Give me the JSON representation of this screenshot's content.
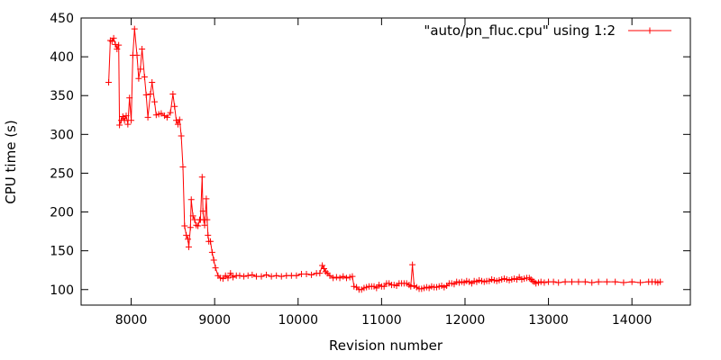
{
  "chart_data": {
    "type": "line",
    "xlabel": "Revision number",
    "ylabel": "CPU time (s)",
    "xlim": [
      7400,
      14700
    ],
    "ylim": [
      80,
      450
    ],
    "x_ticks": [
      8000,
      9000,
      10000,
      11000,
      12000,
      13000,
      14000
    ],
    "y_ticks": [
      100,
      150,
      200,
      250,
      300,
      350,
      400,
      450
    ],
    "grid": false,
    "legend_position": "top-right",
    "series": [
      {
        "name": "\"auto/pn_fluc.cpu\" using 1:2",
        "color": "#ff0000",
        "marker": "plus",
        "points": [
          [
            7730,
            367
          ],
          [
            7750,
            421
          ],
          [
            7770,
            420
          ],
          [
            7790,
            424
          ],
          [
            7810,
            416
          ],
          [
            7830,
            410
          ],
          [
            7850,
            415
          ],
          [
            7860,
            312
          ],
          [
            7880,
            318
          ],
          [
            7900,
            323
          ],
          [
            7920,
            318
          ],
          [
            7940,
            324
          ],
          [
            7960,
            313
          ],
          [
            7980,
            347
          ],
          [
            8000,
            318
          ],
          [
            8020,
            402
          ],
          [
            8040,
            436
          ],
          [
            8070,
            402
          ],
          [
            8090,
            372
          ],
          [
            8110,
            384
          ],
          [
            8130,
            410
          ],
          [
            8160,
            374
          ],
          [
            8180,
            351
          ],
          [
            8200,
            322
          ],
          [
            8230,
            352
          ],
          [
            8250,
            367
          ],
          [
            8280,
            342
          ],
          [
            8300,
            325
          ],
          [
            8330,
            326
          ],
          [
            8360,
            327
          ],
          [
            8400,
            324
          ],
          [
            8430,
            322
          ],
          [
            8470,
            328
          ],
          [
            8500,
            352
          ],
          [
            8520,
            336
          ],
          [
            8540,
            318
          ],
          [
            8560,
            313
          ],
          [
            8580,
            319
          ],
          [
            8600,
            298
          ],
          [
            8620,
            258
          ],
          [
            8640,
            182
          ],
          [
            8660,
            170
          ],
          [
            8680,
            165
          ],
          [
            8690,
            155
          ],
          [
            8710,
            180
          ],
          [
            8720,
            216
          ],
          [
            8740,
            195
          ],
          [
            8760,
            190
          ],
          [
            8780,
            183
          ],
          [
            8800,
            182
          ],
          [
            8820,
            190
          ],
          [
            8830,
            190
          ],
          [
            8850,
            245
          ],
          [
            8860,
            201
          ],
          [
            8870,
            190
          ],
          [
            8880,
            183
          ],
          [
            8900,
            217
          ],
          [
            8910,
            190
          ],
          [
            8920,
            170
          ],
          [
            8930,
            162
          ],
          [
            8950,
            162
          ],
          [
            8970,
            148
          ],
          [
            8990,
            138
          ],
          [
            9010,
            128
          ],
          [
            9040,
            118
          ],
          [
            9070,
            115
          ],
          [
            9100,
            114
          ],
          [
            9130,
            118
          ],
          [
            9160,
            115
          ],
          [
            9190,
            121
          ],
          [
            9220,
            116
          ],
          [
            9260,
            118
          ],
          [
            9300,
            118
          ],
          [
            9350,
            117
          ],
          [
            9400,
            118
          ],
          [
            9450,
            119
          ],
          [
            9500,
            117
          ],
          [
            9560,
            117
          ],
          [
            9620,
            119
          ],
          [
            9680,
            117
          ],
          [
            9740,
            118
          ],
          [
            9800,
            117
          ],
          [
            9860,
            118
          ],
          [
            9920,
            118
          ],
          [
            9980,
            118
          ],
          [
            10040,
            120
          ],
          [
            10100,
            120
          ],
          [
            10160,
            119
          ],
          [
            10220,
            121
          ],
          [
            10260,
            121
          ],
          [
            10290,
            131
          ],
          [
            10310,
            127
          ],
          [
            10330,
            123
          ],
          [
            10350,
            121
          ],
          [
            10380,
            118
          ],
          [
            10420,
            115
          ],
          [
            10460,
            116
          ],
          [
            10500,
            115
          ],
          [
            10540,
            117
          ],
          [
            10580,
            115
          ],
          [
            10620,
            116
          ],
          [
            10650,
            117
          ],
          [
            10670,
            104
          ],
          [
            10700,
            103
          ],
          [
            10730,
            100
          ],
          [
            10760,
            100
          ],
          [
            10790,
            102
          ],
          [
            10820,
            103
          ],
          [
            10850,
            104
          ],
          [
            10880,
            104
          ],
          [
            10910,
            104
          ],
          [
            10940,
            102
          ],
          [
            10970,
            106
          ],
          [
            11000,
            104
          ],
          [
            11030,
            104
          ],
          [
            11060,
            108
          ],
          [
            11090,
            108
          ],
          [
            11120,
            106
          ],
          [
            11150,
            106
          ],
          [
            11180,
            105
          ],
          [
            11210,
            108
          ],
          [
            11240,
            108
          ],
          [
            11270,
            108
          ],
          [
            11300,
            108
          ],
          [
            11330,
            106
          ],
          [
            11350,
            104
          ],
          [
            11370,
            132
          ],
          [
            11390,
            105
          ],
          [
            11420,
            103
          ],
          [
            11450,
            101
          ],
          [
            11480,
            101
          ],
          [
            11510,
            102
          ],
          [
            11540,
            103
          ],
          [
            11570,
            102
          ],
          [
            11600,
            104
          ],
          [
            11630,
            103
          ],
          [
            11660,
            103
          ],
          [
            11690,
            104
          ],
          [
            11720,
            105
          ],
          [
            11750,
            103
          ],
          [
            11780,
            105
          ],
          [
            11810,
            108
          ],
          [
            11840,
            108
          ],
          [
            11870,
            107
          ],
          [
            11900,
            110
          ],
          [
            11930,
            109
          ],
          [
            11960,
            110
          ],
          [
            11990,
            109
          ],
          [
            12020,
            111
          ],
          [
            12050,
            110
          ],
          [
            12080,
            108
          ],
          [
            12110,
            111
          ],
          [
            12140,
            110
          ],
          [
            12170,
            112
          ],
          [
            12200,
            111
          ],
          [
            12230,
            110
          ],
          [
            12260,
            111
          ],
          [
            12290,
            111
          ],
          [
            12320,
            113
          ],
          [
            12350,
            112
          ],
          [
            12380,
            111
          ],
          [
            12410,
            112
          ],
          [
            12440,
            113
          ],
          [
            12470,
            114
          ],
          [
            12500,
            113
          ],
          [
            12530,
            112
          ],
          [
            12560,
            113
          ],
          [
            12590,
            114
          ],
          [
            12620,
            113
          ],
          [
            12650,
            116
          ],
          [
            12680,
            113
          ],
          [
            12710,
            114
          ],
          [
            12740,
            115
          ],
          [
            12770,
            115
          ],
          [
            12790,
            113
          ],
          [
            12810,
            111
          ],
          [
            12830,
            110
          ],
          [
            12850,
            108
          ],
          [
            12880,
            109
          ],
          [
            12910,
            110
          ],
          [
            12950,
            109
          ],
          [
            13000,
            110
          ],
          [
            13060,
            110
          ],
          [
            13120,
            109
          ],
          [
            13200,
            110
          ],
          [
            13280,
            110
          ],
          [
            13360,
            110
          ],
          [
            13440,
            110
          ],
          [
            13520,
            109
          ],
          [
            13600,
            110
          ],
          [
            13700,
            110
          ],
          [
            13800,
            110
          ],
          [
            13900,
            109
          ],
          [
            14000,
            110
          ],
          [
            14100,
            109
          ],
          [
            14200,
            110
          ],
          [
            14240,
            110
          ],
          [
            14280,
            110
          ],
          [
            14310,
            109
          ],
          [
            14340,
            110
          ]
        ]
      }
    ]
  }
}
